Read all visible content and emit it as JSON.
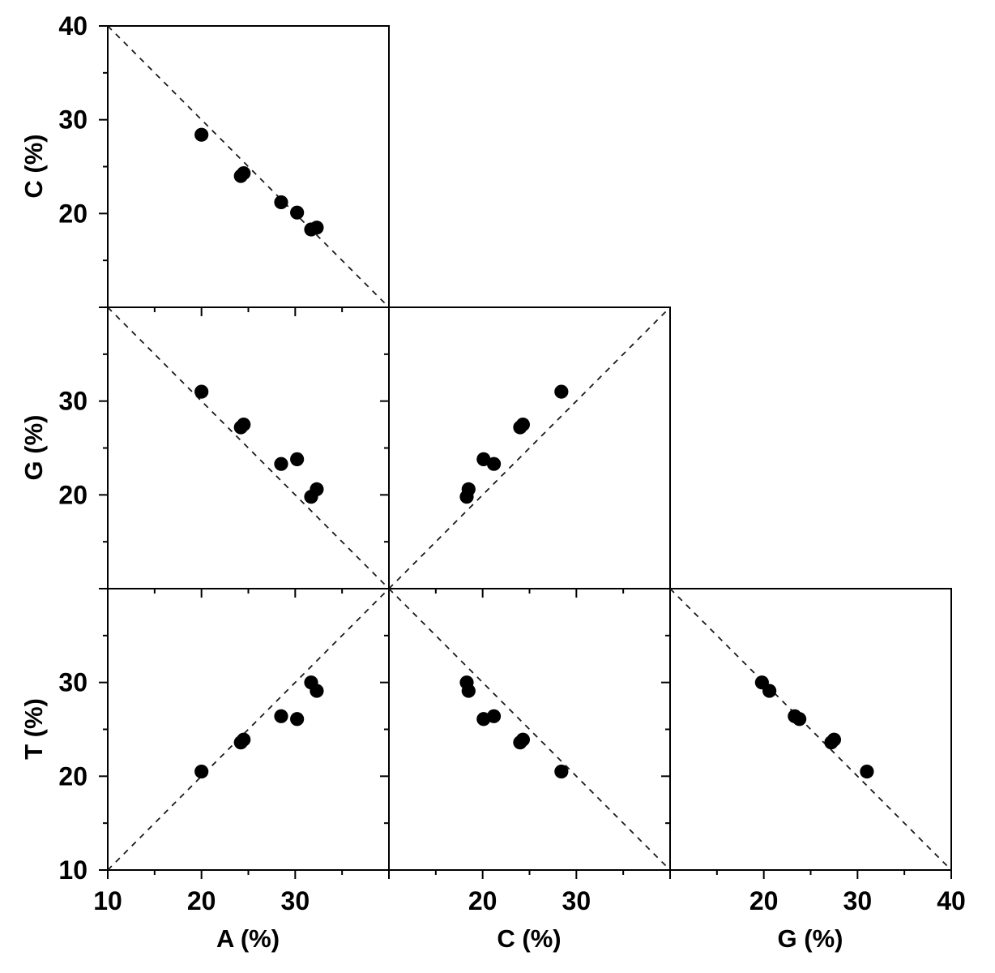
{
  "figure": {
    "background": "#ffffff",
    "ink_color": "#000000",
    "marker_color": "#000000",
    "dash_color": "#1a1a1a"
  },
  "chart_data": {
    "type": "scatter",
    "title": "",
    "description": "Lower-triangle scatterplot matrix of nucleotide base compositions (%): each panel plots one base percentage against another; dashed reference lines show y = x (main diagonal) or x + y = 50 (anti-diagonal).",
    "variables": [
      "A",
      "C",
      "G",
      "T"
    ],
    "axis_range": [
      10,
      40
    ],
    "minor_tick_step": 5,
    "major_tick_step": 10,
    "grid": false,
    "legend": false,
    "marker": "filled-circle",
    "points": [
      {
        "A": 20.0,
        "C": 28.4,
        "G": 31.0,
        "T": 20.5
      },
      {
        "A": 24.2,
        "C": 24.0,
        "G": 27.2,
        "T": 23.6
      },
      {
        "A": 24.5,
        "C": 24.3,
        "G": 27.5,
        "T": 23.9
      },
      {
        "A": 28.5,
        "C": 21.2,
        "G": 23.3,
        "T": 26.4
      },
      {
        "A": 30.2,
        "C": 20.1,
        "G": 23.8,
        "T": 26.1
      },
      {
        "A": 31.7,
        "C": 18.3,
        "G": 19.8,
        "T": 30.0
      },
      {
        "A": 32.3,
        "C": 18.5,
        "G": 20.6,
        "T": 29.1
      }
    ],
    "panels": [
      {
        "x_var": "A",
        "y_var": "C",
        "diagonal": "anti"
      },
      {
        "x_var": "A",
        "y_var": "G",
        "diagonal": "anti"
      },
      {
        "x_var": "C",
        "y_var": "G",
        "diagonal": "main"
      },
      {
        "x_var": "A",
        "y_var": "T",
        "diagonal": "main"
      },
      {
        "x_var": "C",
        "y_var": "T",
        "diagonal": "anti"
      },
      {
        "x_var": "G",
        "y_var": "T",
        "diagonal": "anti"
      }
    ],
    "x_axes": [
      {
        "var": "A",
        "label": "A (%)",
        "tick_labels": [
          10,
          20,
          30
        ]
      },
      {
        "var": "C",
        "label": "C (%)",
        "tick_labels": [
          20,
          30
        ]
      },
      {
        "var": "G",
        "label": "G (%)",
        "tick_labels": [
          20,
          30,
          40
        ]
      }
    ],
    "y_axes": [
      {
        "var": "C",
        "label": "C (%)",
        "tick_labels": [
          40,
          30,
          20
        ]
      },
      {
        "var": "G",
        "label": "G (%)",
        "tick_labels": [
          30,
          20
        ]
      },
      {
        "var": "T",
        "label": "T (%)",
        "tick_labels": [
          30,
          20,
          10
        ]
      }
    ]
  }
}
